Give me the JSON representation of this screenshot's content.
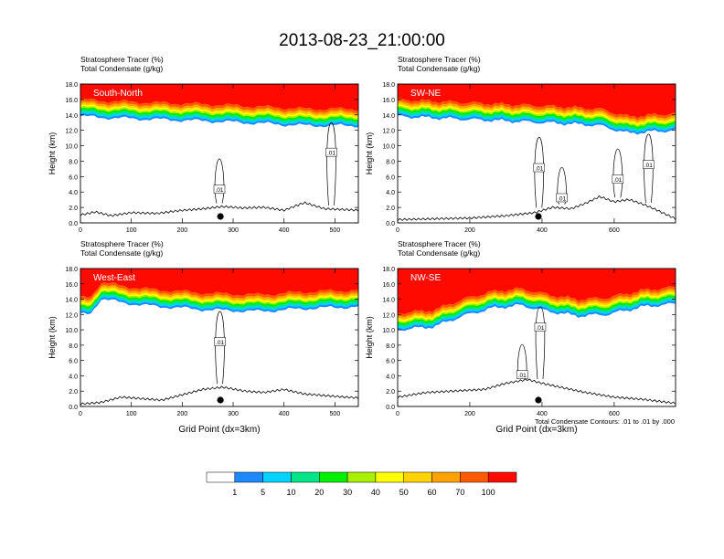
{
  "figure": {
    "title": "2013-08-23_21:00:00",
    "footnote": "Total Condensate Contours: .01 to .01 by .000"
  },
  "chart_data": [
    {
      "type": "heatmap",
      "panel_id": "sn",
      "label": "South-North",
      "subtitle_line1": "Stratosphere Tracer   (%)",
      "subtitle_line2": "Total Condensate   (g/kg)",
      "xlabel": "",
      "ylabel": "Height (km)",
      "xlim": [
        0,
        546
      ],
      "ylim": [
        0,
        18
      ],
      "xticks": [
        0,
        100,
        200,
        300,
        400,
        500
      ],
      "yticks": [
        0,
        2,
        4,
        6,
        8,
        10,
        12,
        14,
        16,
        18
      ],
      "tracer_base_km": [
        [
          0,
          13.8
        ],
        [
          60,
          13.6
        ],
        [
          150,
          13.4
        ],
        [
          250,
          13.2
        ],
        [
          350,
          12.9
        ],
        [
          440,
          12.6
        ],
        [
          546,
          12.6
        ]
      ],
      "terrain_km": [
        [
          0,
          1.0
        ],
        [
          30,
          1.4
        ],
        [
          60,
          0.9
        ],
        [
          100,
          1.3
        ],
        [
          150,
          1.2
        ],
        [
          200,
          1.6
        ],
        [
          240,
          1.8
        ],
        [
          280,
          2.1
        ],
        [
          320,
          1.9
        ],
        [
          360,
          2.0
        ],
        [
          400,
          1.6
        ],
        [
          440,
          2.6
        ],
        [
          480,
          1.8
        ],
        [
          520,
          1.7
        ],
        [
          546,
          1.6
        ]
      ],
      "marker_x": 275,
      "contour_label": ".01",
      "contour_label_points": [
        [
          273,
          4.3
        ],
        [
          493,
          9.1
        ]
      ]
    },
    {
      "type": "heatmap",
      "panel_id": "swne",
      "label": "SW-NE",
      "subtitle_line1": "Stratosphere Tracer   (%)",
      "subtitle_line2": "Total Condensate   (g/kg)",
      "xlabel": "",
      "ylabel": "Height (km)",
      "xlim": [
        0,
        770
      ],
      "ylim": [
        0,
        18
      ],
      "xticks": [
        0,
        200,
        400,
        600
      ],
      "yticks": [
        0,
        2,
        4,
        6,
        8,
        10,
        12,
        14,
        16,
        18
      ],
      "tracer_base_km": [
        [
          0,
          13.8
        ],
        [
          150,
          13.5
        ],
        [
          300,
          13.2
        ],
        [
          450,
          12.9
        ],
        [
          560,
          12.6
        ],
        [
          640,
          11.6
        ],
        [
          700,
          11.8
        ],
        [
          770,
          12.0
        ]
      ],
      "terrain_km": [
        [
          0,
          0.4
        ],
        [
          100,
          0.5
        ],
        [
          200,
          0.6
        ],
        [
          300,
          0.9
        ],
        [
          380,
          1.3
        ],
        [
          430,
          2.0
        ],
        [
          480,
          1.8
        ],
        [
          520,
          2.5
        ],
        [
          560,
          3.4
        ],
        [
          600,
          2.7
        ],
        [
          640,
          3.0
        ],
        [
          680,
          2.4
        ],
        [
          720,
          1.6
        ],
        [
          770,
          0.5
        ]
      ],
      "marker_x": 390,
      "contour_label": ".01",
      "contour_label_points": [
        [
          392,
          7.1
        ],
        [
          455,
          3.2
        ],
        [
          610,
          5.6
        ],
        [
          695,
          7.5
        ]
      ]
    },
    {
      "type": "heatmap",
      "panel_id": "we",
      "label": "West-East",
      "subtitle_line1": "Stratosphere Tracer   (%)",
      "subtitle_line2": "Total Condensate   (g/kg)",
      "xlabel": "Grid Point (dx=3km)",
      "ylabel": "Height (km)",
      "xlim": [
        0,
        546
      ],
      "ylim": [
        0,
        18
      ],
      "xticks": [
        0,
        100,
        200,
        300,
        400,
        500
      ],
      "yticks": [
        0,
        2,
        4,
        6,
        8,
        10,
        12,
        14,
        16,
        18
      ],
      "tracer_base_km": [
        [
          0,
          12.0
        ],
        [
          20,
          12.2
        ],
        [
          40,
          14.0
        ],
        [
          120,
          13.2
        ],
        [
          250,
          12.6
        ],
        [
          350,
          12.4
        ],
        [
          450,
          12.8
        ],
        [
          546,
          13.0
        ]
      ],
      "terrain_km": [
        [
          0,
          0.3
        ],
        [
          40,
          0.5
        ],
        [
          80,
          1.2
        ],
        [
          120,
          1.0
        ],
        [
          160,
          0.8
        ],
        [
          200,
          1.5
        ],
        [
          240,
          2.2
        ],
        [
          280,
          2.5
        ],
        [
          320,
          2.0
        ],
        [
          360,
          1.8
        ],
        [
          400,
          2.2
        ],
        [
          440,
          1.6
        ],
        [
          480,
          1.4
        ],
        [
          520,
          1.2
        ],
        [
          546,
          1.1
        ]
      ],
      "marker_x": 275,
      "contour_label": ".01",
      "contour_label_points": [
        [
          274,
          8.4
        ]
      ]
    },
    {
      "type": "heatmap",
      "panel_id": "nwse",
      "label": "NW-SE",
      "subtitle_line1": "Stratosphere Tracer   (%)",
      "subtitle_line2": "Total Condensate   (g/kg)",
      "xlabel": "Grid Point (dx=3km)",
      "ylabel": "Height (km)",
      "xlim": [
        0,
        770
      ],
      "ylim": [
        0,
        18
      ],
      "xticks": [
        0,
        200,
        400,
        600
      ],
      "yticks": [
        0,
        2,
        4,
        6,
        8,
        10,
        12,
        14,
        16,
        18
      ],
      "tracer_base_km": [
        [
          0,
          10.0
        ],
        [
          100,
          10.4
        ],
        [
          180,
          11.8
        ],
        [
          260,
          12.8
        ],
        [
          340,
          13.2
        ],
        [
          420,
          12.4
        ],
        [
          500,
          11.8
        ],
        [
          580,
          12.0
        ],
        [
          680,
          13.0
        ],
        [
          770,
          13.4
        ]
      ],
      "terrain_km": [
        [
          0,
          1.2
        ],
        [
          80,
          1.8
        ],
        [
          160,
          2.0
        ],
        [
          240,
          2.2
        ],
        [
          300,
          3.0
        ],
        [
          360,
          3.5
        ],
        [
          400,
          3.0
        ],
        [
          440,
          2.6
        ],
        [
          520,
          1.8
        ],
        [
          600,
          1.2
        ],
        [
          680,
          0.9
        ],
        [
          770,
          0.4
        ]
      ],
      "marker_x": 390,
      "contour_label": ".01",
      "contour_label_points": [
        [
          395,
          10.3
        ],
        [
          345,
          4.1
        ]
      ]
    }
  ],
  "colorbar": {
    "levels": [
      "1",
      "5",
      "10",
      "20",
      "30",
      "40",
      "50",
      "60",
      "70",
      "100"
    ],
    "colors": [
      "#ffffff",
      "#1e88ff",
      "#00d2ff",
      "#00e48a",
      "#00ee00",
      "#a8f000",
      "#ffff00",
      "#ffd200",
      "#ffa200",
      "#ff5a00",
      "#ff0a00"
    ]
  }
}
